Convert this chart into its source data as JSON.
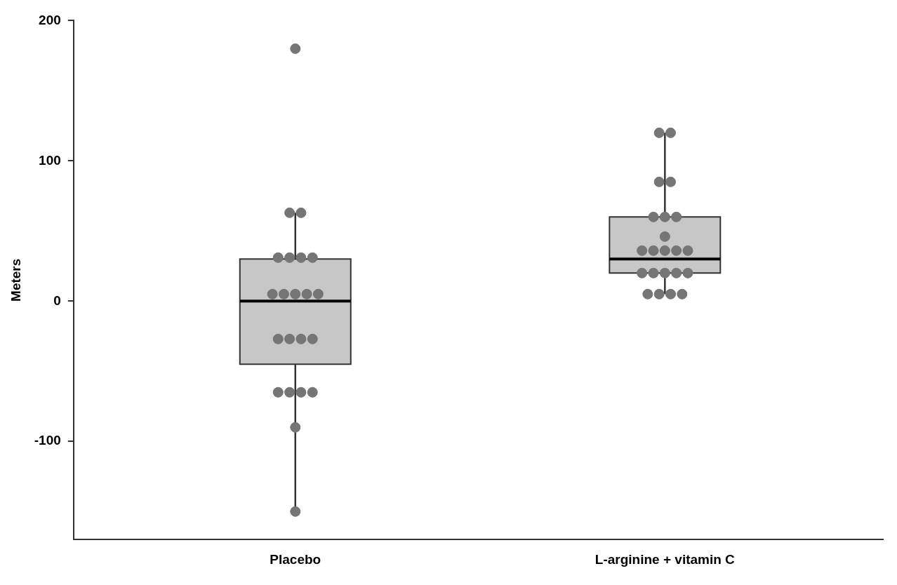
{
  "chart_data": {
    "type": "box",
    "ylabel": "Meters",
    "categories": [
      "Placebo",
      "L-arginine + vitamin C"
    ],
    "boxes": [
      {
        "low": -150,
        "q1": -45,
        "median": 0,
        "q3": 30,
        "high": 63,
        "outliers": [
          180
        ]
      },
      {
        "low": 5,
        "q1": 20,
        "median": 30,
        "q3": 60,
        "high": 120
      }
    ],
    "color": "#bdbdbd",
    "ylim": [
      -170,
      200
    ],
    "yticks": [
      -100,
      0,
      100,
      200
    ],
    "grid": false,
    "series": [
      {
        "type": "scatter",
        "color": "#757575",
        "x": [
          "Placebo",
          "Placebo",
          "Placebo",
          "Placebo",
          "Placebo",
          "Placebo",
          "Placebo",
          "Placebo",
          "Placebo",
          "Placebo",
          "Placebo",
          "Placebo",
          "Placebo",
          "Placebo",
          "Placebo",
          "Placebo",
          "Placebo",
          "Placebo",
          "Placebo",
          "Placebo",
          "Placebo",
          "L-arginine + vitamin C",
          "L-arginine + vitamin C",
          "L-arginine + vitamin C",
          "L-arginine + vitamin C",
          "L-arginine + vitamin C",
          "L-arginine + vitamin C",
          "L-arginine + vitamin C",
          "L-arginine + vitamin C",
          "L-arginine + vitamin C",
          "L-arginine + vitamin C",
          "L-arginine + vitamin C",
          "L-arginine + vitamin C",
          "L-arginine + vitamin C",
          "L-arginine + vitamin C",
          "L-arginine + vitamin C",
          "L-arginine + vitamin C",
          "L-arginine + vitamin C",
          "L-arginine + vitamin C",
          "L-arginine + vitamin C",
          "L-arginine + vitamin C",
          "L-arginine + vitamin C",
          "L-arginine + vitamin C"
        ],
        "values": [
          63,
          63,
          31,
          31,
          31,
          31,
          5,
          5,
          5,
          5,
          5,
          -27,
          -27,
          -27,
          -27,
          -65,
          -65,
          -65,
          -65,
          -90,
          -150,
          120,
          120,
          85,
          85,
          60,
          60,
          60,
          46,
          36,
          36,
          36,
          36,
          36,
          20,
          20,
          20,
          20,
          20,
          5,
          5,
          5,
          5
        ]
      }
    ]
  }
}
